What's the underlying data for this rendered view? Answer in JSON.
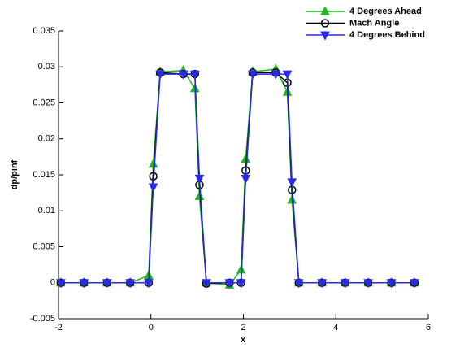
{
  "chart_data": {
    "type": "line",
    "x_label": "x",
    "y_label": "dp/pinf",
    "x": [
      -1.95,
      -1.45,
      -0.95,
      -0.45,
      -0.05,
      0.05,
      0.2,
      0.7,
      0.95,
      1.05,
      1.2,
      1.7,
      1.95,
      2.05,
      2.2,
      2.7,
      2.95,
      3.05,
      3.2,
      3.7,
      4.2,
      4.7,
      5.2,
      5.7
    ],
    "series": [
      {
        "name": "4 Degrees Ahead",
        "color": "#1fb81f",
        "marker": "triangle-up",
        "values": [
          0,
          0,
          0,
          0,
          0.001,
          0.0165,
          0.0293,
          0.0295,
          0.027,
          0.012,
          0,
          -0.0003,
          0.0018,
          0.0172,
          0.0293,
          0.0297,
          0.0265,
          0.0115,
          0,
          0,
          0,
          0,
          0,
          0
        ]
      },
      {
        "name": "Mach Angle",
        "color": "#000000",
        "marker": "circle",
        "values": [
          0,
          0,
          0,
          0,
          0,
          0.0148,
          0.0292,
          0.029,
          0.029,
          0.0136,
          -0.0001,
          0,
          0,
          0.0156,
          0.0292,
          0.0292,
          0.0278,
          0.0129,
          0,
          0,
          0,
          0,
          0,
          0
        ]
      },
      {
        "name": "4 Degrees Behind",
        "color": "#2a2ae6",
        "marker": "triangle-down",
        "values": [
          0,
          0,
          0,
          0,
          0,
          0.0133,
          0.029,
          0.029,
          0.029,
          0.0145,
          0,
          0,
          0,
          0.0145,
          0.029,
          0.029,
          0.029,
          0.014,
          0,
          0,
          0,
          0,
          0,
          0
        ]
      }
    ],
    "xlim": [
      -2,
      6
    ],
    "xticks": [
      -2,
      0,
      2,
      4,
      6
    ],
    "ylim": [
      -0.005,
      0.035
    ],
    "yticks": [
      -0.005,
      0,
      0.005,
      0.01,
      0.015,
      0.02,
      0.025,
      0.03,
      0.035
    ],
    "legend": "upper right"
  }
}
